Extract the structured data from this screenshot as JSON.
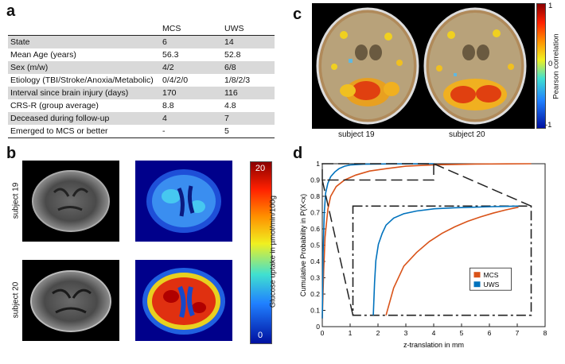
{
  "panels": {
    "a": "a",
    "b": "b",
    "c": "c",
    "d": "d"
  },
  "table": {
    "headers": [
      "",
      "MCS",
      "UWS"
    ],
    "rows": [
      [
        "State",
        "6",
        "14"
      ],
      [
        "Mean Age (years)",
        "56.3",
        "52.8"
      ],
      [
        "Sex (m/w)",
        "4/2",
        "6/8"
      ],
      [
        "Etiology (TBI/Stroke/Anoxia/Metabolic)",
        "0/4/2/0",
        "1/8/2/3"
      ],
      [
        "Interval since brain injury (days)",
        "170",
        "116"
      ],
      [
        "CRS-R (group average)",
        "8.8",
        "4.8"
      ],
      [
        "Deceased during follow-up",
        "4",
        "7"
      ],
      [
        "Emerged to MCS or better",
        "-",
        "5"
      ]
    ]
  },
  "panel_b": {
    "row_labels": [
      "subject 19",
      "subject 20"
    ],
    "colorbar_label": "Glucose uptake in µmol/min/100g",
    "colorbar_max": "20",
    "colorbar_min": "0"
  },
  "panel_c": {
    "captions": [
      "subject 19",
      "subject 20"
    ],
    "colorbar_label": "Pearson correlation",
    "ticks": [
      "1",
      "0",
      "-1"
    ]
  },
  "chart_data": {
    "type": "line",
    "xlabel": "z-translation in mm",
    "ylabel": "Cumulative Probability in P(X<x)",
    "xlim": [
      0,
      8
    ],
    "ylim": [
      0,
      1
    ],
    "xticks": [
      "0",
      "1",
      "2",
      "3",
      "4",
      "5",
      "6",
      "7",
      "8"
    ],
    "yticks": [
      "0",
      "0.1",
      "0.2",
      "0.3",
      "0.4",
      "0.5",
      "0.6",
      "0.7",
      "0.8",
      "0.9",
      "1"
    ],
    "legend_position": "inset-lower-right",
    "series": [
      {
        "name": "MCS",
        "color": "#d95319",
        "x": [
          0,
          0.05,
          0.1,
          0.2,
          0.3,
          0.5,
          0.8,
          1.2,
          1.7,
          2.3,
          3.0,
          4.0,
          5.5,
          7.5
        ],
        "y": [
          0.05,
          0.35,
          0.55,
          0.72,
          0.8,
          0.86,
          0.9,
          0.93,
          0.955,
          0.97,
          0.985,
          0.993,
          0.998,
          1.0
        ]
      },
      {
        "name": "UWS",
        "color": "#0072bd",
        "x": [
          0,
          0.03,
          0.07,
          0.12,
          0.2,
          0.3,
          0.45,
          0.6,
          0.8,
          1.0,
          1.5,
          2.5,
          4.0
        ],
        "y": [
          0.05,
          0.45,
          0.7,
          0.82,
          0.88,
          0.92,
          0.95,
          0.97,
          0.985,
          0.992,
          0.997,
          0.999,
          1.0
        ]
      }
    ],
    "inset": {
      "xlim": [
        1,
        8
      ],
      "ylim": [
        0.8,
        1
      ],
      "series": [
        {
          "name": "MCS",
          "color": "#d95319",
          "x": [
            2.3,
            2.6,
            3.0,
            3.5,
            4.0,
            4.5,
            5.0,
            5.5,
            6.0,
            6.5,
            7.0,
            7.5
          ],
          "y": [
            0.8,
            0.85,
            0.89,
            0.915,
            0.935,
            0.95,
            0.962,
            0.972,
            0.98,
            0.987,
            0.993,
            0.998
          ]
        },
        {
          "name": "UWS",
          "color": "#0072bd",
          "x": [
            1.8,
            1.85,
            1.9,
            2.0,
            2.15,
            2.3,
            2.6,
            3.0,
            3.5,
            4.2,
            5.0,
            6.5,
            7.5
          ],
          "y": [
            0.8,
            0.86,
            0.9,
            0.93,
            0.95,
            0.965,
            0.978,
            0.986,
            0.991,
            0.995,
            0.997,
            0.999,
            1.0
          ]
        }
      ]
    }
  }
}
